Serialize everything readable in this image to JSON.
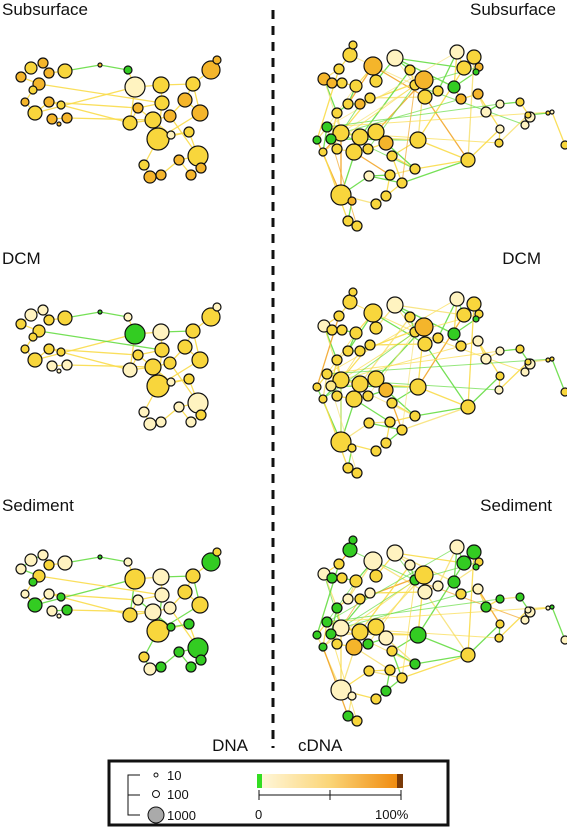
{
  "panels": {
    "dna_subsurface": "Subsurface",
    "dna_dcm": "DCM",
    "dna_sediment": "Sediment",
    "cdna_subsurface": "Subsurface",
    "cdna_dcm": "DCM",
    "cdna_sediment": "Sediment"
  },
  "columns": {
    "left": "DNA",
    "right": "cDNA"
  },
  "legend": {
    "size_labels": [
      "10",
      "100",
      "1000"
    ],
    "scale_min": "0",
    "scale_max": "100%",
    "colors": {
      "low": "#33dd22",
      "mid": "#fff3c4",
      "high": "#f0920f",
      "max": "#7a3a08"
    }
  }
}
